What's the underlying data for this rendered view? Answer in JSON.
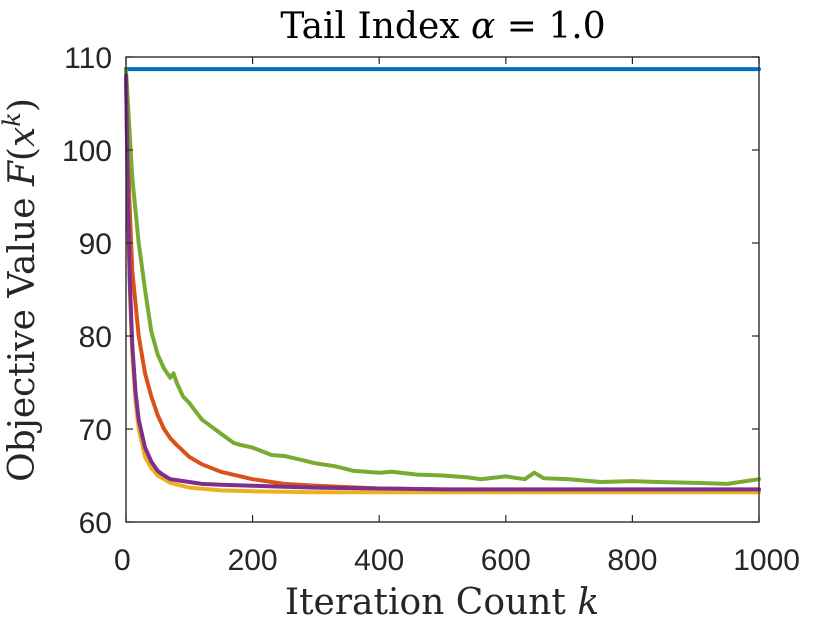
{
  "chart_data": {
    "type": "line",
    "title": "Tail Index α = 1.0",
    "xlabel": "Iteration Count k",
    "ylabel": "Objective Value F(x^k)",
    "title_parts": {
      "text": "Tail Index ",
      "symbol": "α",
      "rest": " = 1.0"
    },
    "xlabel_parts": {
      "text": "Iteration Count ",
      "symbol": "k"
    },
    "ylabel_parts": {
      "text": "Objective Value ",
      "f": "F",
      "open": "(",
      "x": "x",
      "sup": "k",
      "close": ")"
    },
    "xlim": [
      0,
      1000
    ],
    "ylim": [
      60,
      110
    ],
    "xticks": [
      0,
      200,
      400,
      600,
      800,
      1000
    ],
    "yticks": [
      60,
      70,
      80,
      90,
      100,
      110
    ],
    "xtick_labels": [
      "0",
      "200",
      "400",
      "600",
      "800",
      "1000"
    ],
    "ytick_labels": [
      "60",
      "70",
      "80",
      "90",
      "100",
      "110"
    ],
    "grid": false,
    "series": [
      {
        "name": "series-blue",
        "color": "#0072BD",
        "x": [
          0,
          1000
        ],
        "values": [
          108.7,
          108.7
        ]
      },
      {
        "name": "series-green",
        "color": "#77AC30",
        "x": [
          0,
          10,
          20,
          30,
          40,
          50,
          60,
          70,
          75,
          80,
          90,
          100,
          120,
          150,
          170,
          180,
          200,
          230,
          250,
          270,
          300,
          330,
          360,
          400,
          420,
          460,
          500,
          540,
          560,
          600,
          630,
          645,
          660,
          700,
          750,
          800,
          840,
          900,
          950,
          1000
        ],
        "values": [
          108.5,
          97,
          90,
          85,
          80.5,
          78,
          76.5,
          75.5,
          76,
          75,
          73.5,
          72.8,
          71,
          69.5,
          68.5,
          68.3,
          68,
          67.2,
          67.1,
          66.8,
          66.3,
          66,
          65.5,
          65.3,
          65.4,
          65.1,
          65,
          64.8,
          64.6,
          64.9,
          64.6,
          65.3,
          64.7,
          64.6,
          64.3,
          64.4,
          64.3,
          64.2,
          64.1,
          64.6
        ]
      },
      {
        "name": "series-orange",
        "color": "#D95319",
        "x": [
          0,
          5,
          10,
          20,
          30,
          40,
          50,
          60,
          70,
          80,
          100,
          120,
          150,
          200,
          250,
          300,
          400,
          500,
          600,
          700,
          800,
          900,
          1000
        ],
        "values": [
          108,
          95,
          87,
          80,
          76,
          73.5,
          71.5,
          70,
          69,
          68.3,
          67,
          66.2,
          65.4,
          64.6,
          64.1,
          63.9,
          63.6,
          63.5,
          63.4,
          63.4,
          63.4,
          63.4,
          63.4
        ]
      },
      {
        "name": "series-yellow",
        "color": "#EDB120",
        "x": [
          0,
          3,
          6,
          10,
          15,
          20,
          30,
          40,
          50,
          70,
          100,
          150,
          200,
          300,
          400,
          500,
          600,
          700,
          800,
          900,
          1000
        ],
        "values": [
          108,
          94,
          85,
          78,
          73,
          70,
          67,
          65.8,
          65,
          64.2,
          63.7,
          63.4,
          63.3,
          63.2,
          63.2,
          63.2,
          63.2,
          63.2,
          63.2,
          63.2,
          63.2
        ]
      },
      {
        "name": "series-purple",
        "color": "#7E2F8E",
        "x": [
          0,
          3,
          6,
          10,
          15,
          20,
          30,
          40,
          50,
          60,
          70,
          80,
          100,
          120,
          150,
          200,
          250,
          300,
          400,
          500,
          600,
          700,
          800,
          900,
          1000
        ],
        "values": [
          108,
          95,
          86,
          79,
          74,
          71,
          68,
          66.5,
          65.5,
          65,
          64.6,
          64.5,
          64.3,
          64.1,
          64,
          63.9,
          63.8,
          63.7,
          63.6,
          63.5,
          63.5,
          63.5,
          63.5,
          63.5,
          63.5
        ]
      }
    ]
  }
}
